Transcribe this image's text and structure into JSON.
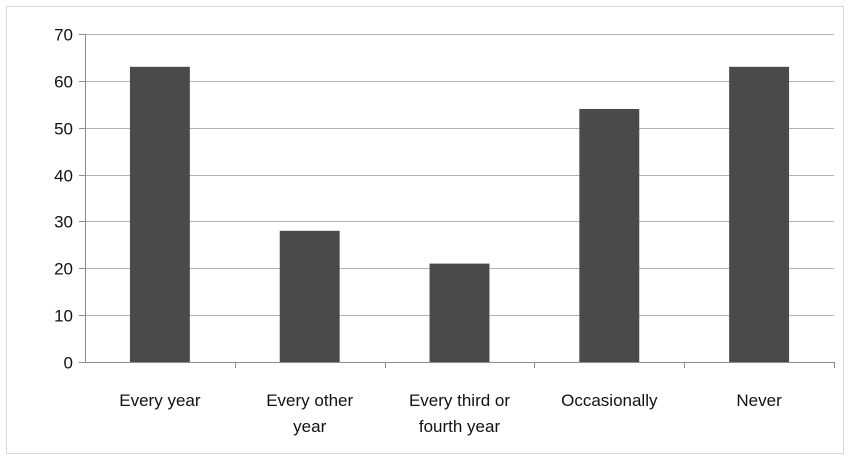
{
  "chart_data": {
    "type": "bar",
    "categories": [
      "Every year",
      "Every other year",
      "Every third or fourth year",
      "Occasionally",
      "Never"
    ],
    "category_label_lines": [
      [
        "Every year"
      ],
      [
        "Every other",
        "year"
      ],
      [
        "Every third or",
        "fourth year"
      ],
      [
        "Occasionally"
      ],
      [
        "Never"
      ]
    ],
    "values": [
      63,
      28,
      21,
      54,
      63
    ],
    "ylim": [
      0,
      70
    ],
    "yticks": [
      0,
      10,
      20,
      30,
      40,
      50,
      60,
      70
    ],
    "grid": true,
    "bar_color": "#4a4a4a",
    "grid_color": "#b3b3b3",
    "axis_color": "#8c8c8c",
    "title": "",
    "xlabel": "",
    "ylabel": ""
  }
}
